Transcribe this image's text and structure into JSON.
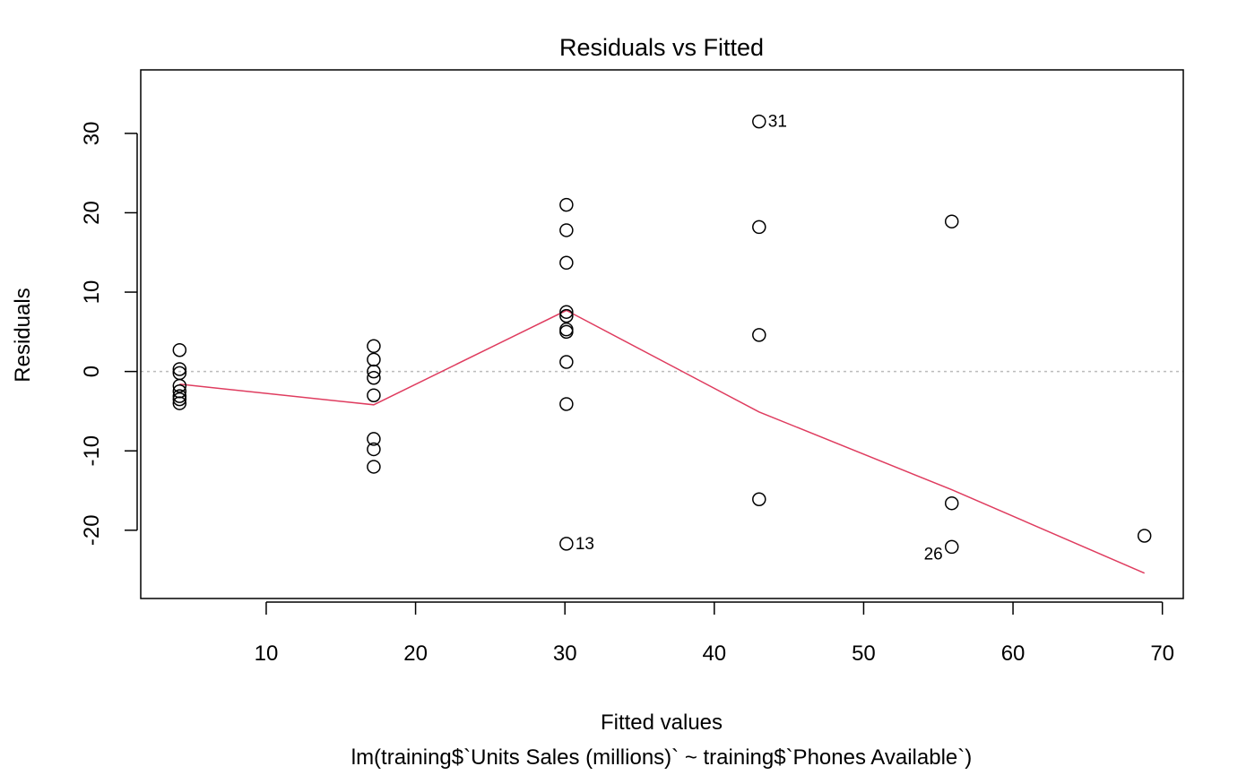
{
  "chart_data": {
    "type": "scatter",
    "title": "Residuals vs Fitted",
    "xlabel": "Fitted values",
    "ylabel": "Residuals",
    "subtitle": "lm(training$`Units Sales (millions)` ~ training$`Phones Available`)",
    "xlim": [
      1.6,
      71.4
    ],
    "ylim": [
      -28.6,
      38.0
    ],
    "xticks": [
      10,
      20,
      30,
      40,
      50,
      60,
      70
    ],
    "xtick_labels": [
      "10",
      "20",
      "30",
      "40",
      "50",
      "60",
      "70"
    ],
    "yticks": [
      -20,
      -10,
      0,
      10,
      20,
      30
    ],
    "ytick_labels": [
      "-20",
      "-10",
      "0",
      "10",
      "20",
      "30"
    ],
    "reference_line": {
      "y": 0,
      "style": "dotted",
      "color": "#bbbbbb"
    },
    "points": [
      {
        "x": 4.2,
        "y": 2.7
      },
      {
        "x": 4.2,
        "y": 0.3
      },
      {
        "x": 4.2,
        "y": -0.2
      },
      {
        "x": 4.2,
        "y": -1.8
      },
      {
        "x": 4.2,
        "y": -2.5
      },
      {
        "x": 4.2,
        "y": -3.1
      },
      {
        "x": 4.2,
        "y": -3.5
      },
      {
        "x": 4.2,
        "y": -4.0
      },
      {
        "x": 17.2,
        "y": 3.2
      },
      {
        "x": 17.2,
        "y": 1.5
      },
      {
        "x": 17.2,
        "y": 0.0
      },
      {
        "x": 17.2,
        "y": -0.8
      },
      {
        "x": 17.2,
        "y": -3.0
      },
      {
        "x": 17.2,
        "y": -8.5
      },
      {
        "x": 17.2,
        "y": -9.8
      },
      {
        "x": 17.2,
        "y": -12.0
      },
      {
        "x": 30.1,
        "y": 21.0
      },
      {
        "x": 30.1,
        "y": 17.8
      },
      {
        "x": 30.1,
        "y": 13.7
      },
      {
        "x": 30.1,
        "y": 7.5
      },
      {
        "x": 30.1,
        "y": 7.0
      },
      {
        "x": 30.1,
        "y": 5.3
      },
      {
        "x": 30.1,
        "y": 5.0
      },
      {
        "x": 30.1,
        "y": 1.2
      },
      {
        "x": 30.1,
        "y": -4.1
      },
      {
        "x": 30.1,
        "y": -21.7,
        "label": "13"
      },
      {
        "x": 43.0,
        "y": 31.5,
        "label": "31"
      },
      {
        "x": 43.0,
        "y": 18.2
      },
      {
        "x": 43.0,
        "y": 4.6
      },
      {
        "x": 43.0,
        "y": -16.1
      },
      {
        "x": 55.9,
        "y": 18.9
      },
      {
        "x": 55.9,
        "y": -16.6
      },
      {
        "x": 55.9,
        "y": -22.1,
        "label": "26"
      },
      {
        "x": 68.8,
        "y": -20.7
      }
    ],
    "smooth_line": {
      "color": "#df3c5f",
      "x": [
        4.2,
        17.2,
        30.1,
        43.0,
        55.9,
        68.8
      ],
      "y": [
        -1.6,
        -4.2,
        7.7,
        -5.1,
        -14.9,
        -25.4
      ]
    }
  }
}
